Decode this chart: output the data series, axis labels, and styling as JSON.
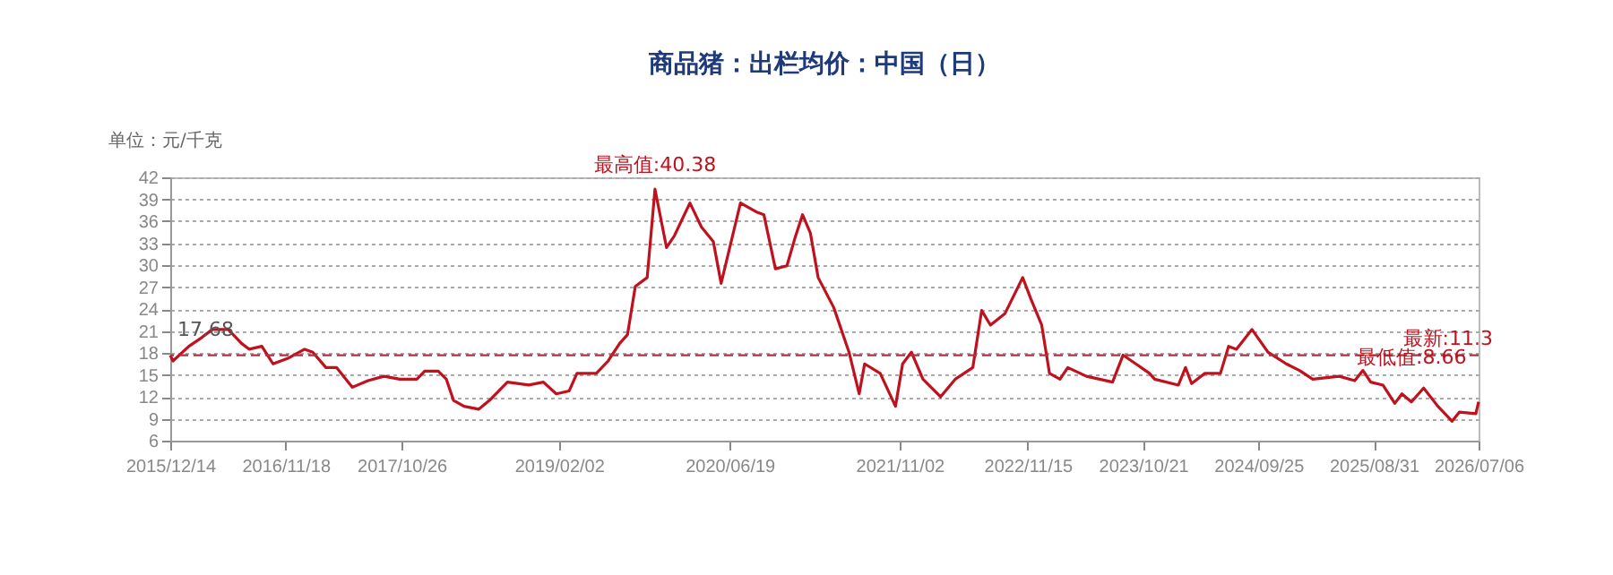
{
  "chart_data": {
    "type": "line",
    "title": "商品猪：出栏均价：中国（日）",
    "ylabel": "单位：元/千克",
    "x": [
      "2015-12-14",
      "2015-12-22",
      "2016-02-07",
      "2016-03-16",
      "2016-04-16",
      "2016-06-02",
      "2016-07-11",
      "2016-08-03",
      "2016-09-09",
      "2016-10-12",
      "2016-11-27",
      "2017-01-13",
      "2017-02-06",
      "2017-03-17",
      "2017-04-17",
      "2017-06-03",
      "2017-07-19",
      "2017-09-04",
      "2017-10-21",
      "2017-12-10",
      "2018-01-02",
      "2018-02-11",
      "2018-03-07",
      "2018-03-28",
      "2018-04-28",
      "2018-06-10",
      "2018-07-12",
      "2018-09-03",
      "2018-11-05",
      "2018-12-18",
      "2019-01-25",
      "2019-03-04",
      "2019-03-27",
      "2019-05-23",
      "2019-06-27",
      "2019-07-31",
      "2019-08-23",
      "2019-09-15",
      "2019-10-20",
      "2019-11-12",
      "2019-12-16",
      "2020-01-08",
      "2020-02-23",
      "2020-03-28",
      "2020-05-02",
      "2020-05-25",
      "2020-07-21",
      "2020-09-05",
      "2020-09-28",
      "2020-11-01",
      "2020-12-05",
      "2020-12-28",
      "2021-01-20",
      "2021-02-12",
      "2021-03-07",
      "2021-04-22",
      "2021-06-06",
      "2021-07-06",
      "2021-07-22",
      "2021-09-06",
      "2021-10-21",
      "2021-11-11",
      "2021-12-07",
      "2022-01-10",
      "2022-03-03",
      "2022-04-15",
      "2022-06-06",
      "2022-07-02",
      "2022-07-28",
      "2022-09-09",
      "2022-10-31",
      "2022-11-24",
      "2022-12-26",
      "2023-01-18",
      "2023-02-18",
      "2023-03-13",
      "2023-05-07",
      "2023-07-23",
      "2023-08-23",
      "2023-11-09",
      "2023-11-24",
      "2024-02-02",
      "2024-02-23",
      "2024-03-12",
      "2024-04-20",
      "2024-06-05",
      "2024-06-29",
      "2024-07-22",
      "2024-09-06",
      "2024-10-23",
      "2024-12-16",
      "2025-01-24",
      "2025-03-04",
      "2025-05-21",
      "2025-07-06",
      "2025-07-30",
      "2025-08-22",
      "2025-09-27",
      "2025-11-01",
      "2025-11-22",
      "2025-12-20",
      "2026-01-25",
      "2026-03-08",
      "2026-04-19",
      "2026-05-10",
      "2026-06-28",
      "2026-07-06"
    ],
    "series": [
      {
        "color": "#c0121e",
        "values": [
          17.68,
          16.9,
          18.9,
          20.1,
          21.2,
          21.2,
          19.3,
          18.5,
          18.9,
          16.5,
          17.3,
          18.5,
          18.1,
          16.0,
          16.0,
          13.3,
          14.2,
          14.8,
          14.4,
          14.4,
          15.5,
          15.5,
          14.4,
          11.5,
          10.7,
          10.3,
          11.5,
          14.0,
          13.6,
          14.0,
          12.4,
          12.8,
          15.2,
          15.2,
          16.9,
          19.3,
          20.5,
          27.1,
          28.3,
          40.38,
          32.4,
          34.0,
          38.5,
          35.2,
          33.2,
          27.5,
          38.5,
          37.3,
          36.9,
          29.5,
          29.9,
          33.6,
          36.9,
          34.4,
          28.3,
          24.2,
          18.1,
          12.4,
          16.5,
          15.2,
          10.7,
          16.5,
          18.1,
          14.4,
          12.0,
          14.4,
          16.0,
          23.8,
          21.8,
          23.4,
          28.3,
          25.4,
          21.8,
          15.2,
          14.4,
          16.0,
          14.8,
          14.0,
          17.7,
          15.2,
          14.4,
          13.6,
          16.0,
          13.8,
          15.2,
          15.2,
          18.9,
          18.5,
          21.2,
          18.1,
          16.5,
          15.6,
          14.4,
          14.8,
          14.2,
          15.6,
          14.0,
          13.6,
          11.1,
          12.4,
          11.3,
          13.2,
          10.7,
          8.66,
          9.9,
          9.7,
          11.3
        ]
      }
    ],
    "xlim": [
      "2015-12-14",
      "2026-07-06"
    ],
    "xticks": [
      {
        "value": "2015-12-14",
        "label": "2015/12/14"
      },
      {
        "value": "2016-11-18",
        "label": "2016/11/18"
      },
      {
        "value": "2017-10-26",
        "label": "2017/10/26"
      },
      {
        "value": "2019-02-02",
        "label": "2019/02/02"
      },
      {
        "value": "2020-06-19",
        "label": "2020/06/19"
      },
      {
        "value": "2021-11-02",
        "label": "2021/11/02"
      },
      {
        "value": "2022-11-15",
        "label": "2022/11/15"
      },
      {
        "value": "2023-10-21",
        "label": "2023/10/21"
      },
      {
        "value": "2024-09-25",
        "label": "2024/09/25"
      },
      {
        "value": "2025-08-31",
        "label": "2025/08/31"
      },
      {
        "value": "2026-07-06",
        "label": "2026/07/06"
      }
    ],
    "ylim": [
      6,
      42
    ],
    "yticks": [
      6,
      9,
      12,
      15,
      18,
      21,
      24,
      27,
      30,
      33,
      36,
      39,
      42
    ],
    "grid": "y",
    "line_style": "solid",
    "ref_lines": [
      {
        "axis": "y",
        "value": 17.68,
        "color": "#b03040",
        "line_style": "dashed"
      }
    ],
    "annotations": [
      {
        "text": "17.68",
        "x": "2015-12-14",
        "y": 17.68
      },
      {
        "text": "最高值:40.38",
        "x": "2019-11-12",
        "y": 40.38
      },
      {
        "text": "最新:11.3",
        "x": "2026-07-06",
        "y": 11.3
      },
      {
        "text": "最低值:8.66",
        "x": "2026-04-19",
        "y": 8.66
      }
    ]
  }
}
